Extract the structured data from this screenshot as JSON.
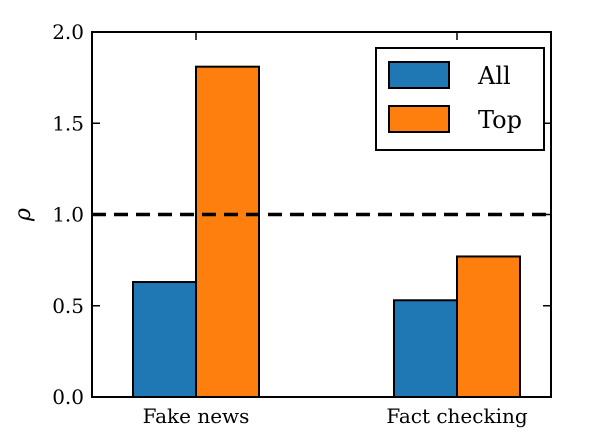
{
  "chart_data": {
    "type": "bar",
    "categories": [
      "Fake news",
      "Fact checking"
    ],
    "series": [
      {
        "name": "All",
        "values": [
          0.63,
          0.53
        ],
        "color": "#1f77b4"
      },
      {
        "name": "Top",
        "values": [
          1.81,
          0.77
        ],
        "color": "#ff7f0e"
      }
    ],
    "ylabel": "ρ",
    "ylim": [
      0.0,
      2.0
    ],
    "yticks": [
      "0.0",
      "0.5",
      "1.0",
      "1.5",
      "2.0"
    ],
    "reference_line": {
      "y": 1.0,
      "style": "dashed",
      "color": "#000000"
    },
    "legend_position": "top-right",
    "grid": false
  }
}
